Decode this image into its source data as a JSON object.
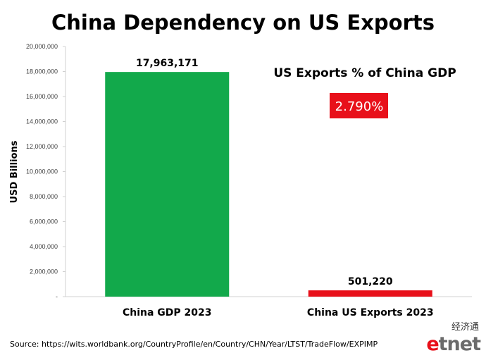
{
  "chart_data": {
    "type": "bar",
    "title": "China Dependency on US Exports",
    "ylabel": "USD Billions",
    "xlabel": "",
    "categories": [
      "China GDP 2023",
      "China US Exports 2023"
    ],
    "values": [
      17963171,
      501220
    ],
    "value_labels": [
      "17,963,171",
      "501,220"
    ],
    "bar_colors": [
      "#12a94b",
      "#e8101a"
    ],
    "ylim": [
      0,
      20000000
    ],
    "yticks": [
      0,
      2000000,
      4000000,
      6000000,
      8000000,
      10000000,
      12000000,
      14000000,
      16000000,
      18000000,
      20000000
    ],
    "ytick_labels": [
      "-",
      "2,000,000",
      "4,000,000",
      "6,000,000",
      "8,000,000",
      "10,000,000",
      "12,000,000",
      "14,000,000",
      "16,000,000",
      "18,000,000",
      "20,000,000"
    ],
    "grid": false,
    "annotation": {
      "title": "US Exports % of China GDP",
      "value": "2.790%",
      "box_color": "#e8101a"
    }
  },
  "source": "Source: https://wits.worldbank.org/CountryProfile/en/Country/CHN/Year/LTST/TradeFlow/EXPIMP",
  "logo": {
    "chinese": "经济通",
    "latin": "etnet",
    "colors": {
      "e": "#e8101a",
      "rest": "#6b6b6b"
    }
  }
}
